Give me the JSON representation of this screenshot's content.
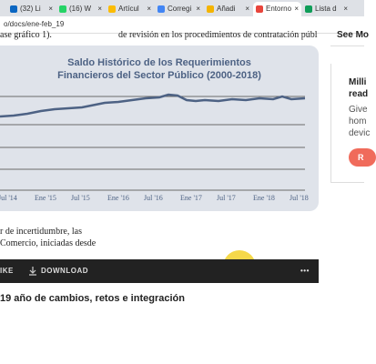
{
  "tabs": [
    "(32) Li",
    "(16) W",
    "Artícul",
    "Corregi",
    "Añadi",
    "Entorno",
    "Lista d"
  ],
  "address": "o/docs/ene-feb_19",
  "text_top_left": "ase gráfico 1).",
  "text_top_right": "de revisión en los procedimientos de contratación públ",
  "sidebar_top": "See Mo",
  "chart": {
    "title_line1": "Saldo Histórico de los Requerimientos",
    "title_line2": "Financieros del Sector Público (2000-2018)",
    "x_labels": [
      "Jul '14",
      "Ene '15",
      "Jul '15",
      "Ene '16",
      "Jul '16",
      "Ene '17",
      "Jul '17",
      "Ene '18",
      "Jul '18"
    ]
  },
  "sidebar": {
    "lines": [
      "Milli",
      "read",
      "Give",
      "hom",
      "devic"
    ],
    "button": "R"
  },
  "body_lines": [
    "r de incertidumbre, las",
    "Comercio, iniciadas desde"
  ],
  "toolbar": {
    "left": "IKE",
    "download": "DOWNLOAD",
    "more": "•••"
  },
  "next_title": "19 año de cambios, retos e integración"
}
